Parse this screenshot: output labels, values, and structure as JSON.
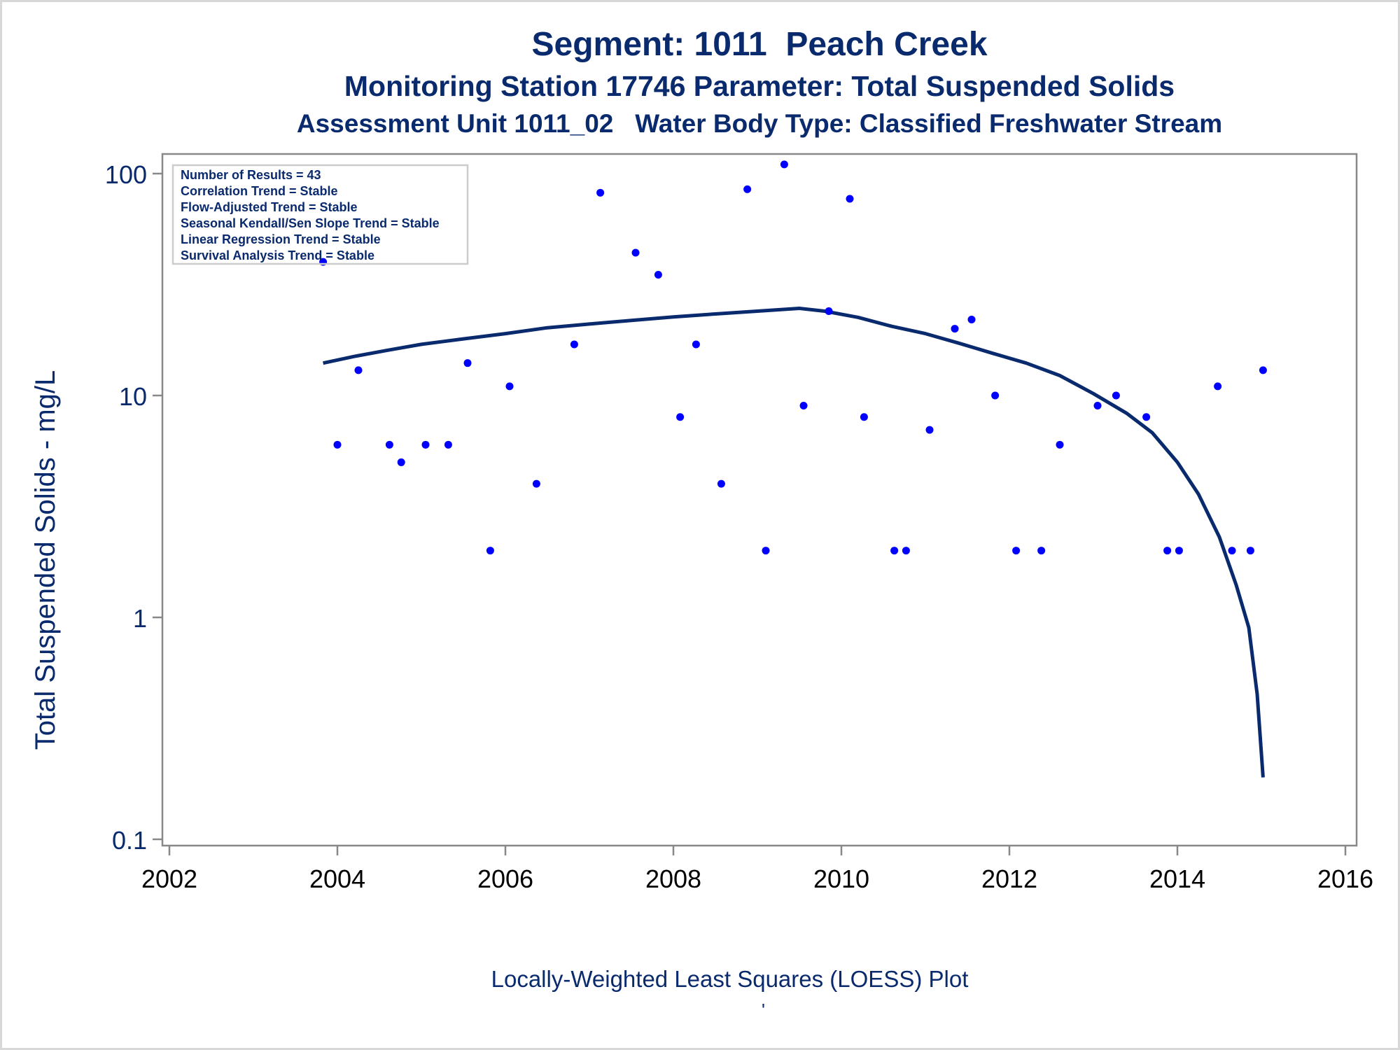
{
  "titles": {
    "line1": "Segment: 1011  Peach Creek",
    "line2": "Monitoring Station 17746 Parameter: Total Suspended Solids",
    "line3": "Assessment Unit 1011_02   Water Body Type: Classified Freshwater Stream"
  },
  "footnote": "Locally-Weighted Least Squares (LOESS) Plot",
  "footnote_mark": "'",
  "legend_box": [
    "Number of Results = 43",
    "Correlation Trend = Stable",
    "Flow-Adjusted Trend = Stable",
    "Seasonal Kendall/Sen Slope Trend = Stable",
    "Linear Regression Trend = Stable",
    "Survival Analysis Trend = Stable"
  ],
  "colors": {
    "text": "#0a2a6e",
    "points": "#0000ff",
    "curve": "#0a2a6e",
    "axis": "#888888"
  },
  "chart_data": {
    "type": "scatter",
    "ylabel": "Total Suspended Solids - mg/L",
    "xlabel": "",
    "xlim": [
      2002,
      2016
    ],
    "ylim": [
      0.1,
      100
    ],
    "yscale": "log",
    "x_ticks": [
      "2002",
      "2004",
      "2006",
      "2008",
      "2010",
      "2012",
      "2014",
      "2016"
    ],
    "y_ticks": [
      "0.1",
      "1",
      "10",
      "100"
    ],
    "points": [
      {
        "x": 2003.83,
        "y": 40
      },
      {
        "x": 2004.0,
        "y": 6
      },
      {
        "x": 2004.25,
        "y": 13
      },
      {
        "x": 2004.62,
        "y": 6
      },
      {
        "x": 2004.76,
        "y": 5
      },
      {
        "x": 2005.05,
        "y": 6
      },
      {
        "x": 2005.32,
        "y": 6
      },
      {
        "x": 2005.55,
        "y": 14
      },
      {
        "x": 2005.82,
        "y": 2
      },
      {
        "x": 2006.05,
        "y": 11
      },
      {
        "x": 2006.37,
        "y": 4
      },
      {
        "x": 2006.82,
        "y": 17
      },
      {
        "x": 2007.13,
        "y": 82
      },
      {
        "x": 2007.55,
        "y": 44
      },
      {
        "x": 2007.82,
        "y": 35
      },
      {
        "x": 2008.08,
        "y": 8
      },
      {
        "x": 2008.27,
        "y": 17
      },
      {
        "x": 2008.57,
        "y": 4
      },
      {
        "x": 2008.88,
        "y": 85
      },
      {
        "x": 2009.1,
        "y": 2
      },
      {
        "x": 2009.32,
        "y": 110
      },
      {
        "x": 2009.55,
        "y": 9
      },
      {
        "x": 2009.85,
        "y": 24
      },
      {
        "x": 2010.1,
        "y": 77
      },
      {
        "x": 2010.27,
        "y": 8
      },
      {
        "x": 2010.63,
        "y": 2
      },
      {
        "x": 2010.77,
        "y": 2
      },
      {
        "x": 2011.05,
        "y": 7
      },
      {
        "x": 2011.35,
        "y": 20
      },
      {
        "x": 2011.55,
        "y": 22
      },
      {
        "x": 2011.83,
        "y": 10
      },
      {
        "x": 2012.08,
        "y": 2
      },
      {
        "x": 2012.38,
        "y": 2
      },
      {
        "x": 2012.6,
        "y": 6
      },
      {
        "x": 2013.05,
        "y": 9
      },
      {
        "x": 2013.27,
        "y": 10
      },
      {
        "x": 2013.63,
        "y": 8
      },
      {
        "x": 2013.88,
        "y": 2
      },
      {
        "x": 2014.02,
        "y": 2
      },
      {
        "x": 2014.48,
        "y": 11
      },
      {
        "x": 2014.65,
        "y": 2
      },
      {
        "x": 2014.87,
        "y": 2
      },
      {
        "x": 2015.02,
        "y": 13
      }
    ],
    "loess_curve": [
      {
        "x": 2003.83,
        "y": 14
      },
      {
        "x": 2004.2,
        "y": 15
      },
      {
        "x": 2004.6,
        "y": 16
      },
      {
        "x": 2005.0,
        "y": 17
      },
      {
        "x": 2005.5,
        "y": 18
      },
      {
        "x": 2006.0,
        "y": 19
      },
      {
        "x": 2006.5,
        "y": 20.2
      },
      {
        "x": 2007.0,
        "y": 21
      },
      {
        "x": 2007.5,
        "y": 21.8
      },
      {
        "x": 2008.0,
        "y": 22.6
      },
      {
        "x": 2008.5,
        "y": 23.3
      },
      {
        "x": 2009.0,
        "y": 24
      },
      {
        "x": 2009.5,
        "y": 24.7
      },
      {
        "x": 2009.8,
        "y": 24
      },
      {
        "x": 2010.2,
        "y": 22.5
      },
      {
        "x": 2010.6,
        "y": 20.5
      },
      {
        "x": 2011.0,
        "y": 19
      },
      {
        "x": 2011.4,
        "y": 17.2
      },
      {
        "x": 2011.8,
        "y": 15.5
      },
      {
        "x": 2012.2,
        "y": 14
      },
      {
        "x": 2012.6,
        "y": 12.3
      },
      {
        "x": 2013.0,
        "y": 10.2
      },
      {
        "x": 2013.4,
        "y": 8.3
      },
      {
        "x": 2013.7,
        "y": 6.8
      },
      {
        "x": 2014.0,
        "y": 5
      },
      {
        "x": 2014.25,
        "y": 3.6
      },
      {
        "x": 2014.5,
        "y": 2.3
      },
      {
        "x": 2014.7,
        "y": 1.4
      },
      {
        "x": 2014.85,
        "y": 0.9
      },
      {
        "x": 2014.95,
        "y": 0.45
      },
      {
        "x": 2015.02,
        "y": 0.19
      }
    ]
  }
}
